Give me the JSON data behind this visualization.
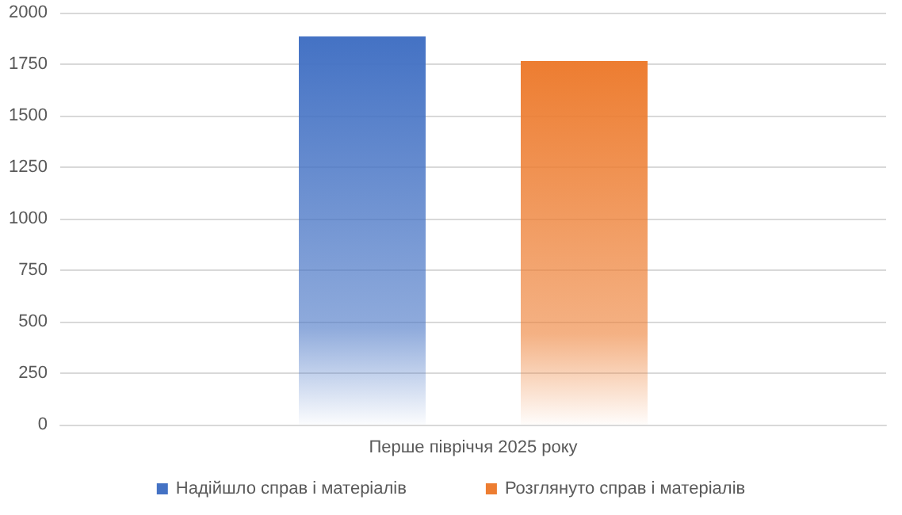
{
  "chart_data": {
    "type": "bar",
    "categories": [
      "Перше півріччя 2025 року"
    ],
    "series": [
      {
        "name": "Надійшло справ і матеріалів",
        "color": "#4472c4",
        "values": [
          1885
        ]
      },
      {
        "name": "Розглянуто справ і матеріалів",
        "color": "#ed7d31",
        "values": [
          1765
        ]
      }
    ],
    "ylim": [
      0,
      2000
    ],
    "yticks": [
      0,
      250,
      500,
      750,
      1000,
      1250,
      1500,
      1750,
      2000
    ],
    "grid": "y",
    "legend": "bottom"
  }
}
